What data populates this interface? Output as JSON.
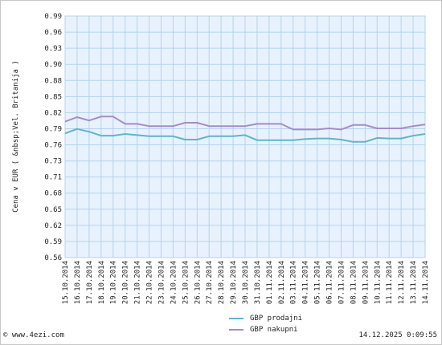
{
  "chart_data": {
    "type": "line",
    "ylabel": "Cena v EUR ( &nbsp;Vel. Britanija )",
    "xlabel": "",
    "ylim": [
      0.56,
      0.99
    ],
    "yticks": [
      "0.99",
      "0.96",
      "0.93",
      "0.90",
      "0.88",
      "0.85",
      "0.82",
      "0.79",
      "0.76",
      "0.73",
      "0.71",
      "0.68",
      "0.65",
      "0.62",
      "0.59",
      "0.56"
    ],
    "categories": [
      "15.10.2014",
      "16.10.2014",
      "17.10.2014",
      "18.10.2014",
      "19.10.2014",
      "20.10.2014",
      "21.10.2014",
      "22.10.2014",
      "23.10.2014",
      "24.10.2014",
      "25.10.2014",
      "26.10.2014",
      "27.10.2014",
      "28.10.2014",
      "29.10.2014",
      "30.10.2014",
      "31.10.2014",
      "01.11.2014",
      "02.11.2014",
      "03.11.2014",
      "04.11.2014",
      "05.11.2014",
      "06.11.2014",
      "07.11.2014",
      "08.11.2014",
      "09.11.2014",
      "10.11.2014",
      "11.11.2014",
      "12.11.2014",
      "13.11.2014",
      "14.11.2014"
    ],
    "grid": true,
    "legend_position": "bottom",
    "series": [
      {
        "name": "GBP prodajni",
        "color": "#5bb8c8",
        "values": [
          0.781,
          0.789,
          0.784,
          0.777,
          0.777,
          0.78,
          0.778,
          0.776,
          0.776,
          0.776,
          0.77,
          0.77,
          0.776,
          0.776,
          0.776,
          0.778,
          0.769,
          0.769,
          0.769,
          0.769,
          0.771,
          0.772,
          0.772,
          0.77,
          0.766,
          0.766,
          0.773,
          0.772,
          0.772,
          0.777,
          0.78
        ]
      },
      {
        "name": "GBP nakupni",
        "color": "#a58cc8",
        "values": [
          0.802,
          0.81,
          0.804,
          0.811,
          0.811,
          0.798,
          0.798,
          0.794,
          0.794,
          0.794,
          0.8,
          0.8,
          0.794,
          0.794,
          0.794,
          0.794,
          0.798,
          0.798,
          0.798,
          0.788,
          0.788,
          0.788,
          0.79,
          0.788,
          0.796,
          0.796,
          0.79,
          0.79,
          0.79,
          0.794,
          0.797
        ]
      }
    ]
  },
  "footer": {
    "site": "© www.4ezi.com",
    "timestamp": "14.12.2025  0:09:55"
  }
}
